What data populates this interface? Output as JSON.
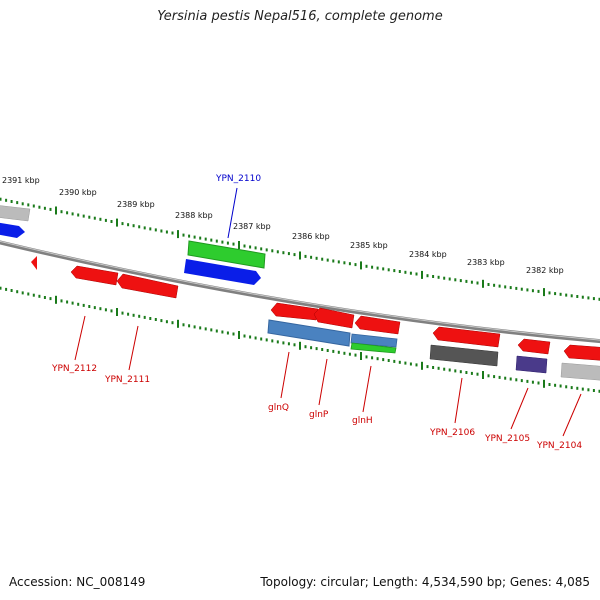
{
  "title": "Yersinia pestis Nepal516, complete genome",
  "footer": {
    "accession": "Accession: NC_008149",
    "summary": "Topology: circular; Length: 4,534,590 bp; Genes: 4,085"
  },
  "colors": {
    "backbone": "#808080",
    "tick": "#1a7a1a",
    "forward_label": "#0000cc",
    "reverse_label": "#cc0000",
    "red": "#ee1111",
    "blue": "#0a1ee8",
    "green": "#2ecc2e",
    "steelblue": "#4a82c0",
    "darkgray": "#555555",
    "purple": "#4a3a8a",
    "lightgray": "#bbbbbb"
  },
  "kbp_labels": [
    "2391 kbp",
    "2390 kbp",
    "2389 kbp",
    "2388 kbp",
    "2387 kbp",
    "2386 kbp",
    "2385 kbp",
    "2384 kbp",
    "2383 kbp",
    "2382 kbp"
  ],
  "gene_labels": {
    "forward": [
      "YPN_2110"
    ],
    "reverse": [
      "YPN_2112",
      "YPN_2111",
      "glnQ",
      "glnP",
      "glnH",
      "YPN_2106",
      "YPN_2105",
      "YPN_2104"
    ]
  }
}
